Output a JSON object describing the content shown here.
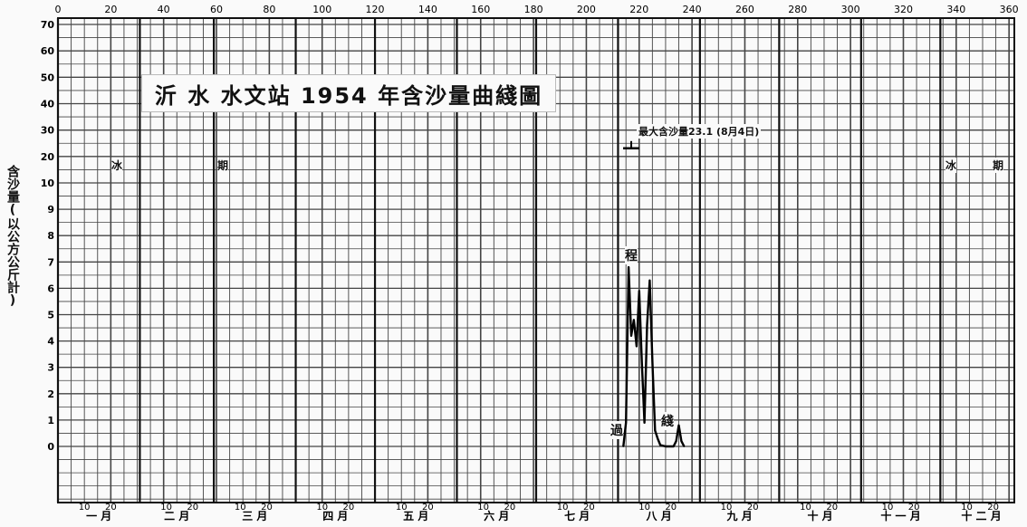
{
  "chart_data": {
    "type": "line",
    "title": "沂 水 水文站 1954 年含沙量曲綫圖",
    "ylabel": "含沙量(以公方公斤計)",
    "x_ticks": [
      0,
      20,
      40,
      60,
      80,
      100,
      120,
      140,
      160,
      180,
      200,
      220,
      240,
      260,
      280,
      300,
      320,
      340,
      360
    ],
    "y_ticks": [
      0,
      1,
      2,
      3,
      4,
      5,
      6,
      7,
      8,
      9,
      10,
      20,
      30,
      40,
      50,
      60,
      70
    ],
    "months": [
      "一 月",
      "二 月",
      "三 月",
      "四 月",
      "五 月",
      "六 月",
      "七 月",
      "八 月",
      "九 月",
      "十 月",
      "十 一 月",
      "十 二 月"
    ],
    "month_subticks": [
      "10",
      "20"
    ],
    "series": [
      {
        "values": [
          [
            214,
            0
          ],
          [
            215,
            0.9
          ],
          [
            216,
            6.8
          ],
          [
            217,
            4.2
          ],
          [
            218,
            4.8
          ],
          [
            219,
            3.8
          ],
          [
            220,
            5.9
          ],
          [
            221,
            3.2
          ],
          [
            222,
            0.9
          ],
          [
            223,
            4.6
          ],
          [
            224,
            6.3
          ],
          [
            225,
            3.2
          ],
          [
            226,
            0.6
          ],
          [
            227,
            0.3
          ],
          [
            228,
            0.05
          ],
          [
            230,
            0
          ],
          [
            233,
            0
          ],
          [
            234,
            0.2
          ],
          [
            235,
            0.8
          ],
          [
            236,
            0.2
          ],
          [
            237,
            0
          ]
        ]
      }
    ],
    "max_marker": {
      "x": 217,
      "y": 23.1
    },
    "annotations": {
      "max_label": "最大含沙量23.1 (8月4日)",
      "flood_start": "過",
      "flood_chars": [
        "程"
      ],
      "flood_end": "綫",
      "ice_left": "冰",
      "ice_left2": "期",
      "ice_right": "冰",
      "ice_right2": "期"
    }
  }
}
